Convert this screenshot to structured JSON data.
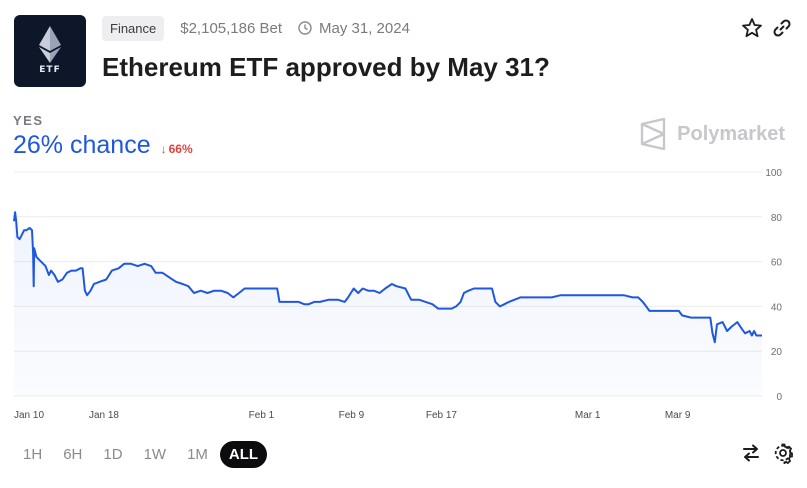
{
  "market": {
    "category": "Finance",
    "volume": "$2,105,186 Bet",
    "end_date": "May 31, 2024",
    "title": "Ethereum ETF approved by May 31?",
    "thumbnail_text": "ETF"
  },
  "icons": {
    "clock": "clock-icon",
    "star": "star-icon",
    "link": "link-icon",
    "brand": "polymarket-logo-icon",
    "swap": "swap-arrows-icon",
    "settings": "gear-icon"
  },
  "outcome": {
    "label": "YES",
    "chance": "26% chance",
    "change": "66%",
    "change_direction": "down"
  },
  "brand": {
    "name": "Polymarket"
  },
  "colors": {
    "accent": "#1f57e0",
    "negative": "#e0443e",
    "tag_bg": "#eeeef0"
  },
  "range_buttons": [
    {
      "label": "1H",
      "active": false
    },
    {
      "label": "6H",
      "active": false
    },
    {
      "label": "1D",
      "active": false
    },
    {
      "label": "1W",
      "active": false
    },
    {
      "label": "1M",
      "active": false
    },
    {
      "label": "ALL",
      "active": true
    }
  ],
  "chart_data": {
    "type": "line",
    "title": "",
    "xlabel": "",
    "ylabel": "",
    "ylim": [
      0,
      100
    ],
    "yticks": [
      0,
      20,
      40,
      60,
      80,
      100
    ],
    "x_tick_labels": [
      {
        "label": "Jan 10",
        "day": 10
      },
      {
        "label": "Jan 18",
        "day": 18
      },
      {
        "label": "Feb 1",
        "day": 32
      },
      {
        "label": "Feb 9",
        "day": 40
      },
      {
        "label": "Feb 17",
        "day": 48
      },
      {
        "label": "Mar 1",
        "day": 61
      },
      {
        "label": "Mar 9",
        "day": 69
      }
    ],
    "xlim": [
      10,
      76.5
    ],
    "grid": true,
    "series": [
      {
        "name": "",
        "color": "#1f57e0",
        "points": [
          [
            10.0,
            78
          ],
          [
            10.1,
            82
          ],
          [
            10.2,
            78
          ],
          [
            10.3,
            71
          ],
          [
            10.5,
            70
          ],
          [
            10.7,
            72
          ],
          [
            10.9,
            74
          ],
          [
            11.1,
            74
          ],
          [
            11.4,
            75
          ],
          [
            11.6,
            74
          ],
          [
            11.7,
            64
          ],
          [
            11.75,
            49
          ],
          [
            11.8,
            66
          ],
          [
            12.0,
            62
          ],
          [
            12.4,
            60
          ],
          [
            12.8,
            58
          ],
          [
            13.1,
            54
          ],
          [
            13.3,
            56
          ],
          [
            13.6,
            54
          ],
          [
            13.9,
            51
          ],
          [
            14.3,
            52
          ],
          [
            14.7,
            55
          ],
          [
            15.1,
            56
          ],
          [
            15.5,
            56
          ],
          [
            15.9,
            57
          ],
          [
            16.1,
            57
          ],
          [
            16.3,
            47
          ],
          [
            16.5,
            45
          ],
          [
            16.8,
            47
          ],
          [
            17.1,
            50
          ],
          [
            17.6,
            51
          ],
          [
            18.2,
            52
          ],
          [
            18.7,
            56
          ],
          [
            19.3,
            57
          ],
          [
            19.8,
            59
          ],
          [
            20.4,
            59
          ],
          [
            21.0,
            58
          ],
          [
            21.6,
            59
          ],
          [
            22.2,
            58
          ],
          [
            22.6,
            55
          ],
          [
            23.2,
            55
          ],
          [
            23.8,
            53
          ],
          [
            24.4,
            51
          ],
          [
            25.0,
            50
          ],
          [
            25.5,
            49
          ],
          [
            26.0,
            46
          ],
          [
            26.6,
            47
          ],
          [
            27.2,
            46
          ],
          [
            27.8,
            47
          ],
          [
            28.4,
            47
          ],
          [
            29.0,
            46
          ],
          [
            29.5,
            44
          ],
          [
            30.0,
            46
          ],
          [
            30.5,
            48
          ],
          [
            31.5,
            48
          ],
          [
            32.0,
            48
          ],
          [
            32.5,
            48
          ],
          [
            33.4,
            48
          ],
          [
            33.6,
            42
          ],
          [
            34.5,
            42
          ],
          [
            35.3,
            42
          ],
          [
            35.8,
            41
          ],
          [
            36.2,
            41
          ],
          [
            36.7,
            42
          ],
          [
            37.2,
            42
          ],
          [
            38.0,
            43
          ],
          [
            38.8,
            43
          ],
          [
            39.4,
            42
          ],
          [
            39.7,
            44
          ],
          [
            40.2,
            48
          ],
          [
            40.6,
            46
          ],
          [
            41.0,
            48
          ],
          [
            41.5,
            47
          ],
          [
            42.0,
            47
          ],
          [
            42.5,
            46
          ],
          [
            43.0,
            48
          ],
          [
            43.6,
            50
          ],
          [
            44.0,
            49
          ],
          [
            44.8,
            48
          ],
          [
            45.3,
            43
          ],
          [
            46.0,
            43
          ],
          [
            46.6,
            42
          ],
          [
            47.2,
            41
          ],
          [
            47.7,
            39
          ],
          [
            48.2,
            39
          ],
          [
            48.9,
            39
          ],
          [
            49.3,
            40
          ],
          [
            49.7,
            42
          ],
          [
            50.0,
            46
          ],
          [
            50.4,
            47
          ],
          [
            50.9,
            48
          ],
          [
            51.5,
            48
          ],
          [
            52.1,
            48
          ],
          [
            52.5,
            48
          ],
          [
            52.8,
            42
          ],
          [
            53.2,
            40
          ],
          [
            53.6,
            41
          ],
          [
            54.0,
            42
          ],
          [
            54.5,
            43
          ],
          [
            55.0,
            44
          ],
          [
            55.8,
            44
          ],
          [
            56.5,
            44
          ],
          [
            57.2,
            44
          ],
          [
            57.8,
            44
          ],
          [
            58.6,
            45
          ],
          [
            59.0,
            45
          ],
          [
            59.8,
            45
          ],
          [
            60.5,
            45
          ],
          [
            61.2,
            45
          ],
          [
            61.8,
            45
          ],
          [
            62.6,
            45
          ],
          [
            63.4,
            45
          ],
          [
            64.2,
            45
          ],
          [
            65.0,
            44
          ],
          [
            65.5,
            44
          ],
          [
            65.9,
            42
          ],
          [
            66.5,
            38
          ],
          [
            67.5,
            38
          ],
          [
            68.3,
            38
          ],
          [
            69.1,
            38
          ],
          [
            69.4,
            36
          ],
          [
            70.2,
            35
          ],
          [
            71.1,
            35
          ],
          [
            71.9,
            35
          ],
          [
            72.1,
            28
          ],
          [
            72.3,
            24
          ],
          [
            72.5,
            32
          ],
          [
            73.0,
            33
          ],
          [
            73.4,
            29
          ],
          [
            73.8,
            31
          ],
          [
            74.3,
            33
          ],
          [
            74.7,
            30
          ],
          [
            75.0,
            28
          ],
          [
            75.4,
            29
          ],
          [
            75.6,
            27
          ],
          [
            75.8,
            29
          ],
          [
            76.0,
            27
          ],
          [
            76.5,
            27
          ]
        ]
      }
    ]
  }
}
